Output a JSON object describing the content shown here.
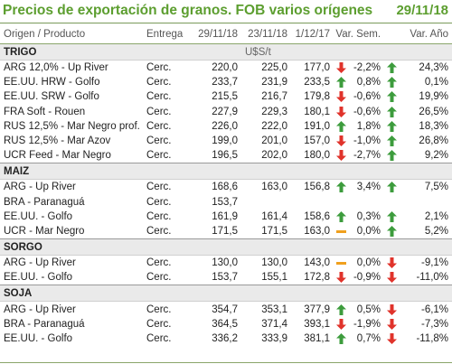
{
  "title": "Precios de exportación de granos. FOB varios orígenes",
  "date": "29/11/18",
  "columns": {
    "origen": "Origen / Producto",
    "entrega": "Entrega",
    "d1": "29/11/18",
    "d2": "23/11/18",
    "d3": "1/12/17",
    "var_sem": "Var. Sem.",
    "var_anio": "Var. Año"
  },
  "unit": "U$S/t",
  "colors": {
    "title": "#5c9e2f",
    "up": "#3d9c3d",
    "down": "#e0332b",
    "flat": "#f0a01e"
  },
  "sections": [
    {
      "name": "TRIGO",
      "rows": [
        {
          "prod": "ARG 12,0% - Up River",
          "ent": "Cerc.",
          "d1": "220,0",
          "d2": "225,0",
          "d3": "177,0",
          "ind_sem": "down-arrow-icon",
          "vs": "-2,2%",
          "ind_anio": "up-arrow-icon",
          "va": "24,3%"
        },
        {
          "prod": "EE.UU. HRW - Golfo",
          "ent": "Cerc.",
          "d1": "233,7",
          "d2": "231,9",
          "d3": "233,5",
          "ind_sem": "up-arrow-icon",
          "vs": "0,8%",
          "ind_anio": "up-arrow-icon",
          "va": "0,1%"
        },
        {
          "prod": "EE.UU. SRW - Golfo",
          "ent": "Cerc.",
          "d1": "215,5",
          "d2": "216,7",
          "d3": "179,8",
          "ind_sem": "down-arrow-icon",
          "vs": "-0,6%",
          "ind_anio": "up-arrow-icon",
          "va": "19,9%"
        },
        {
          "prod": "FRA Soft - Rouen",
          "ent": "Cerc.",
          "d1": "227,9",
          "d2": "229,3",
          "d3": "180,1",
          "ind_sem": "down-arrow-icon",
          "vs": "-0,6%",
          "ind_anio": "up-arrow-icon",
          "va": "26,5%"
        },
        {
          "prod": "RUS 12,5% - Mar Negro prof.",
          "ent": "Cerc.",
          "d1": "226,0",
          "d2": "222,0",
          "d3": "191,0",
          "ind_sem": "up-arrow-icon",
          "vs": "1,8%",
          "ind_anio": "up-arrow-icon",
          "va": "18,3%"
        },
        {
          "prod": "RUS 12,5% - Mar Azov",
          "ent": "Cerc.",
          "d1": "199,0",
          "d2": "201,0",
          "d3": "157,0",
          "ind_sem": "down-arrow-icon",
          "vs": "-1,0%",
          "ind_anio": "up-arrow-icon",
          "va": "26,8%"
        },
        {
          "prod": "UCR Feed - Mar Negro",
          "ent": "Cerc.",
          "d1": "196,5",
          "d2": "202,0",
          "d3": "180,0",
          "ind_sem": "down-arrow-icon",
          "vs": "-2,7%",
          "ind_anio": "up-arrow-icon",
          "va": "9,2%"
        }
      ]
    },
    {
      "name": "MAIZ",
      "rows": [
        {
          "prod": "ARG - Up River",
          "ent": "Cerc.",
          "d1": "168,6",
          "d2": "163,0",
          "d3": "156,8",
          "ind_sem": "up-arrow-icon",
          "vs": "3,4%",
          "ind_anio": "up-arrow-icon",
          "va": "7,5%"
        },
        {
          "prod": "BRA - Paranaguá",
          "ent": "Cerc.",
          "d1": "153,7",
          "d2": "",
          "d3": "",
          "ind_sem": "",
          "vs": "",
          "ind_anio": "",
          "va": ""
        },
        {
          "prod": "EE.UU. - Golfo",
          "ent": "Cerc.",
          "d1": "161,9",
          "d2": "161,4",
          "d3": "158,6",
          "ind_sem": "up-arrow-icon",
          "vs": "0,3%",
          "ind_anio": "up-arrow-icon",
          "va": "2,1%"
        },
        {
          "prod": "UCR - Mar Negro",
          "ent": "Cerc.",
          "d1": "171,5",
          "d2": "171,5",
          "d3": "163,0",
          "ind_sem": "flat-dash-icon",
          "vs": "0,0%",
          "ind_anio": "up-arrow-icon",
          "va": "5,2%"
        }
      ]
    },
    {
      "name": "SORGO",
      "rows": [
        {
          "prod": "ARG - Up River",
          "ent": "Cerc.",
          "d1": "130,0",
          "d2": "130,0",
          "d3": "143,0",
          "ind_sem": "flat-dash-icon",
          "vs": "0,0%",
          "ind_anio": "down-arrow-icon",
          "va": "-9,1%"
        },
        {
          "prod": "EE.UU. - Golfo",
          "ent": "Cerc.",
          "d1": "153,7",
          "d2": "155,1",
          "d3": "172,8",
          "ind_sem": "down-arrow-icon",
          "vs": "-0,9%",
          "ind_anio": "down-arrow-icon",
          "va": "-11,0%"
        }
      ]
    },
    {
      "name": "SOJA",
      "rows": [
        {
          "prod": "ARG - Up River",
          "ent": "Cerc.",
          "d1": "354,7",
          "d2": "353,1",
          "d3": "377,9",
          "ind_sem": "up-arrow-icon",
          "vs": "0,5%",
          "ind_anio": "down-arrow-icon",
          "va": "-6,1%"
        },
        {
          "prod": "BRA - Paranaguá",
          "ent": "Cerc.",
          "d1": "364,5",
          "d2": "371,4",
          "d3": "393,1",
          "ind_sem": "down-arrow-icon",
          "vs": "-1,9%",
          "ind_anio": "down-arrow-icon",
          "va": "-7,3%"
        },
        {
          "prod": "EE.UU. - Golfo",
          "ent": "Cerc.",
          "d1": "336,2",
          "d2": "333,9",
          "d3": "381,1",
          "ind_sem": "up-arrow-icon",
          "vs": "0,7%",
          "ind_anio": "down-arrow-icon",
          "va": "-11,8%"
        }
      ]
    }
  ]
}
